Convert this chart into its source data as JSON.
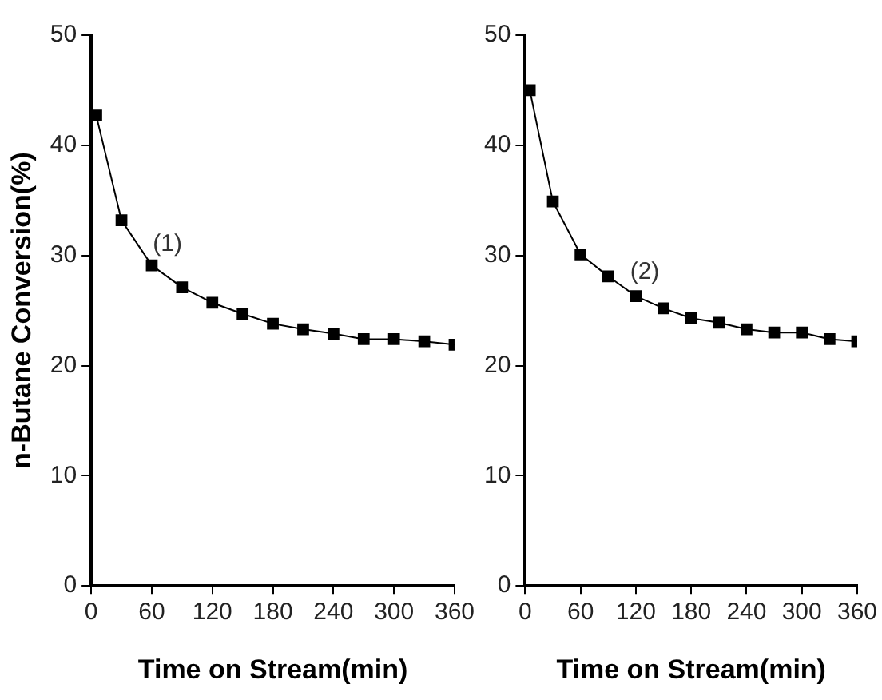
{
  "chart_data": [
    {
      "type": "line",
      "xlabel": "Time on Stream(min)",
      "ylabel": "n-Butane Conversion(%)",
      "x": [
        5,
        30,
        60,
        90,
        120,
        150,
        180,
        210,
        240,
        270,
        300,
        330,
        360
      ],
      "series": [
        {
          "color": "#000000",
          "values": [
            42.7,
            33.2,
            29.1,
            27.1,
            25.7,
            24.7,
            23.8,
            23.3,
            22.9,
            22.4,
            22.4,
            22.2,
            21.9
          ]
        }
      ],
      "xlim": [
        0,
        360
      ],
      "xticks": [
        0,
        60,
        120,
        180,
        240,
        300,
        360
      ],
      "ylim": [
        0,
        50
      ],
      "yticks": [
        0,
        10,
        20,
        30,
        40,
        50
      ],
      "grid": false,
      "legend": false,
      "marker": "square",
      "line_style": "solid",
      "annotations": [
        "(1)"
      ]
    },
    {
      "type": "line",
      "xlabel": "Time on Stream(min)",
      "x": [
        5,
        30,
        60,
        90,
        120,
        150,
        180,
        210,
        240,
        270,
        300,
        330,
        360
      ],
      "series": [
        {
          "color": "#000000",
          "values": [
            45.0,
            34.9,
            30.1,
            28.1,
            26.3,
            25.2,
            24.3,
            23.9,
            23.3,
            23.0,
            23.0,
            22.4,
            22.2
          ]
        }
      ],
      "xlim": [
        0,
        360
      ],
      "xticks": [
        0,
        60,
        120,
        180,
        240,
        300,
        360
      ],
      "ylim": [
        0,
        50
      ],
      "yticks": [
        0,
        10,
        20,
        30,
        40,
        50
      ],
      "grid": false,
      "legend": false,
      "marker": "square",
      "line_style": "solid",
      "annotations": [
        "(2)"
      ]
    }
  ]
}
